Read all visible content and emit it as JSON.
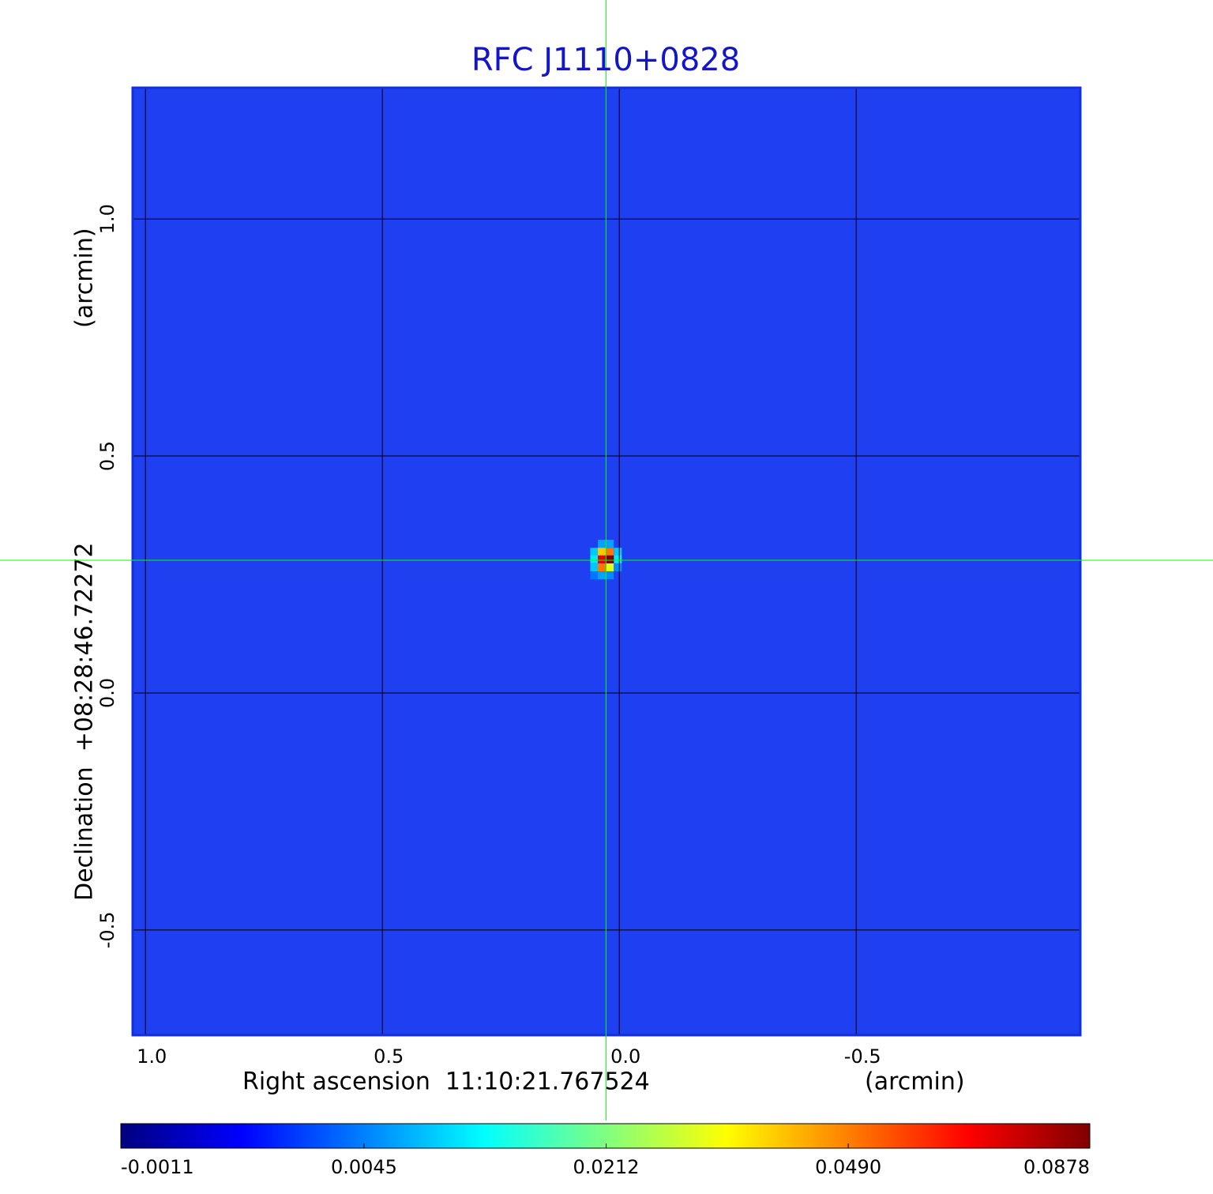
{
  "chart_data": {
    "type": "image",
    "title": "RFC J1110+0828",
    "x_label": "Right ascension  11:10:21.767524",
    "x_unit_label": "(arcmin)",
    "y_label": "Declination  +08:28:46.72272",
    "y_unit_label": "(arcmin)",
    "xlim": [
      1.027,
      -0.973
    ],
    "ylim": [
      -0.722,
      1.277
    ],
    "xticks": [
      {
        "value": 1,
        "label": "1.0"
      },
      0.5,
      {
        "value": 0,
        "label": "0.0"
      },
      -0.5
    ],
    "yticks": [
      -0.5,
      {
        "value": 0,
        "label": "0.0"
      },
      0.5,
      {
        "value": 1,
        "label": "1.0"
      }
    ],
    "grid": true,
    "background_color": "#1e40f0",
    "frame_color": "#1030e0",
    "crosshair": {
      "x": 0.028,
      "y": 0.28,
      "color": "#00ff00"
    },
    "colormap": "jet",
    "colorbar_scale": "sqrt",
    "colorbar_lim": [
      -0.0011,
      0.0878
    ],
    "colorbar_ticks": [
      -0.0011,
      0.0045,
      0.0212,
      {
        "value": 0.049,
        "label": "0.0490"
      },
      0.0878
    ],
    "pixels": {
      "x": [
        0.037,
        0.02,
        0.053,
        0.037,
        0.02,
        0.003,
        0.053,
        0.037,
        0.02,
        0.003,
        0.053,
        0.037,
        0.02,
        0.003,
        0.053,
        0.037,
        0.02
      ],
      "y": [
        0.315,
        0.315,
        0.298,
        0.298,
        0.298,
        0.298,
        0.282,
        0.282,
        0.282,
        0.282,
        0.265,
        0.265,
        0.265,
        0.265,
        0.248,
        0.248,
        0.248
      ],
      "values": [
        0.006,
        0.006,
        0.008,
        0.04,
        0.05,
        0.008,
        0.01,
        0.07,
        0.0878,
        0.01,
        0.008,
        0.05,
        0.03,
        0.005,
        0.004,
        0.006,
        0.005
      ]
    }
  }
}
